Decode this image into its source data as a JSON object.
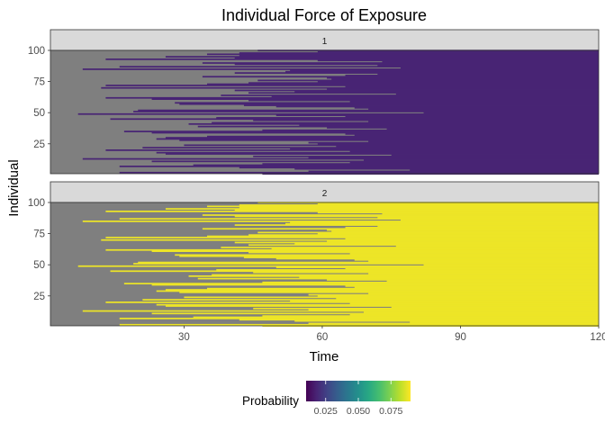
{
  "chart_data": {
    "type": "heatmap",
    "title": "Individual Force of Exposure",
    "xlabel": "Time",
    "ylabel": "Individual",
    "xlim": [
      1,
      120
    ],
    "ylim": [
      1,
      100
    ],
    "x_ticks": [
      30,
      60,
      90,
      120
    ],
    "y_ticks": [
      25,
      50,
      75,
      100
    ],
    "grid": false,
    "missing_color": "#7f7f7f",
    "panels": [
      {
        "label": "1",
        "probability": 0.018
      },
      {
        "label": "2",
        "probability": 0.088
      }
    ],
    "individual_onset_times": [
      47,
      16,
      57,
      79,
      54,
      42,
      16,
      32,
      47,
      66,
      23,
      69,
      8,
      57,
      45,
      75,
      26,
      24,
      66,
      13,
      53,
      21,
      63,
      30,
      59,
      57,
      70,
      29,
      24,
      26,
      35,
      67,
      65,
      23,
      17,
      47,
      74,
      61,
      33,
      55,
      31,
      36,
      70,
      45,
      14,
      37,
      65,
      50,
      7,
      82,
      19,
      20,
      70,
      67,
      50,
      43,
      29,
      28,
      66,
      44,
      23,
      13,
      49,
      38,
      76,
      44,
      54,
      41,
      61,
      12,
      65,
      13,
      35,
      44,
      59,
      46,
      62,
      61,
      34,
      65,
      72,
      41,
      52,
      53,
      8,
      77,
      16,
      72,
      41,
      34,
      73,
      59,
      13,
      41,
      26,
      42,
      35,
      42,
      59,
      46
    ],
    "legend": {
      "title": "Probability",
      "position": "bottom",
      "range": [
        0.01,
        0.09
      ],
      "ticks": [
        0.025,
        0.05,
        0.075
      ],
      "tick_labels": [
        "0.025",
        "0.050",
        "0.075"
      ],
      "colormap": "viridis"
    }
  }
}
